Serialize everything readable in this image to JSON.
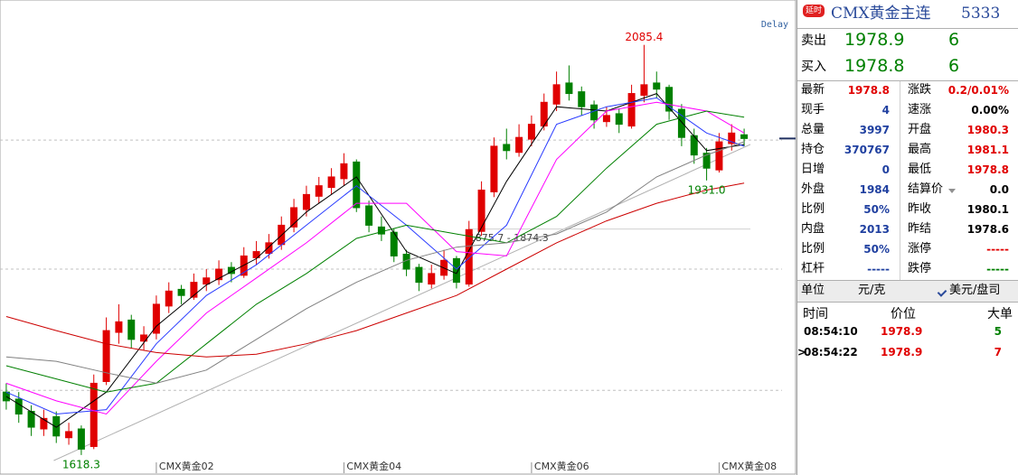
{
  "chart_data": {
    "type": "candlestick",
    "delay": "Delay",
    "xlim": [
      -0.5,
      59.5
    ],
    "ylim": [
      1612,
      2118
    ],
    "up_color": "#e00000",
    "down_color": "#008000",
    "ohlc": [
      [
        1690,
        1700,
        1670,
        1680
      ],
      [
        1682,
        1690,
        1655,
        1665
      ],
      [
        1668,
        1675,
        1640,
        1650
      ],
      [
        1648,
        1670,
        1640,
        1660
      ],
      [
        1662,
        1668,
        1632,
        1640
      ],
      [
        1638,
        1655,
        1630,
        1645
      ],
      [
        1648,
        1652,
        1618.3,
        1625
      ],
      [
        1628,
        1710,
        1625,
        1700
      ],
      [
        1702,
        1775,
        1698,
        1760
      ],
      [
        1758,
        1790,
        1745,
        1770
      ],
      [
        1772,
        1778,
        1740,
        1750
      ],
      [
        1748,
        1765,
        1738,
        1755
      ],
      [
        1757,
        1800,
        1750,
        1790
      ],
      [
        1788,
        1815,
        1780,
        1805
      ],
      [
        1807,
        1812,
        1790,
        1800
      ],
      [
        1798,
        1825,
        1795,
        1815
      ],
      [
        1813,
        1830,
        1805,
        1820
      ],
      [
        1818,
        1840,
        1812,
        1830
      ],
      [
        1832,
        1838,
        1815,
        1825
      ],
      [
        1823,
        1855,
        1820,
        1845
      ],
      [
        1843,
        1862,
        1835,
        1850
      ],
      [
        1848,
        1870,
        1842,
        1860
      ],
      [
        1858,
        1890,
        1852,
        1880
      ],
      [
        1878,
        1910,
        1872,
        1900
      ],
      [
        1898,
        1925,
        1890,
        1915
      ],
      [
        1913,
        1935,
        1905,
        1925
      ],
      [
        1923,
        1945,
        1915,
        1935
      ],
      [
        1933,
        1962,
        1925,
        1950
      ],
      [
        1952,
        1955,
        1895,
        1900
      ],
      [
        1902,
        1908,
        1872,
        1880
      ],
      [
        1878,
        1890,
        1862,
        1870
      ],
      [
        1872,
        1876,
        1838,
        1845
      ],
      [
        1847,
        1852,
        1822,
        1830
      ],
      [
        1832,
        1836,
        1805,
        1815
      ],
      [
        1813,
        1835,
        1808,
        1825
      ],
      [
        1823,
        1852,
        1818,
        1840
      ],
      [
        1842,
        1845,
        1808,
        1815
      ],
      [
        1813,
        1885,
        1810,
        1875
      ],
      [
        1873,
        1930,
        1868,
        1920
      ],
      [
        1918,
        1980,
        1912,
        1970
      ],
      [
        1972,
        1990,
        1955,
        1965
      ],
      [
        1963,
        1995,
        1958,
        1980
      ],
      [
        1978,
        2005,
        1970,
        1995
      ],
      [
        1993,
        2030,
        1988,
        2020
      ],
      [
        2018,
        2055,
        2010,
        2040
      ],
      [
        2042,
        2062,
        2022,
        2030
      ],
      [
        2032,
        2038,
        2005,
        2015
      ],
      [
        2017,
        2022,
        1990,
        2000
      ],
      [
        1998,
        2015,
        1992,
        2005
      ],
      [
        2007,
        2012,
        1985,
        1995
      ],
      [
        1993,
        2040,
        1990,
        2030
      ],
      [
        2028,
        2085.4,
        2020,
        2040
      ],
      [
        2042,
        2055,
        2025,
        2035
      ],
      [
        2037,
        2040,
        2000,
        2010
      ],
      [
        2012,
        2018,
        1970,
        1980
      ],
      [
        1982,
        1990,
        1950,
        1960
      ],
      [
        1962,
        1968,
        1931.0,
        1945
      ],
      [
        1943,
        1985,
        1940,
        1975
      ],
      [
        1973,
        1995,
        1965,
        1985
      ],
      [
        1983,
        1990,
        1970,
        1978.8
      ]
    ],
    "x": [
      0,
      4,
      8,
      12,
      16,
      20,
      24,
      28,
      32,
      36,
      40,
      44,
      48,
      52,
      56,
      59
    ],
    "series": [
      {
        "color": "#000000",
        "values": [
          1685,
          1650,
          1690,
          1765,
          1812,
          1842,
          1895,
          1935,
          1850,
          1825,
          1930,
          2015,
          2010,
          2030,
          1965,
          1972
        ]
      },
      {
        "color": "#2a3cff",
        "values": [
          1690,
          1665,
          1670,
          1745,
          1800,
          1835,
          1880,
          1925,
          1880,
          1830,
          1880,
          1995,
          2015,
          2025,
          1985,
          1970
        ]
      },
      {
        "color": "#ff00ff",
        "values": [
          1700,
          1680,
          1665,
          1725,
          1780,
          1820,
          1860,
          1905,
          1905,
          1850,
          1845,
          1955,
          2010,
          2020,
          2010,
          1985
        ]
      },
      {
        "color": "#008000",
        "values": [
          1720,
          1705,
          1690,
          1700,
          1745,
          1790,
          1825,
          1865,
          1880,
          1870,
          1860,
          1890,
          1945,
          1995,
          2010,
          2003
        ]
      },
      {
        "color": "#808080",
        "values": [
          1730,
          1725,
          1712,
          1700,
          1715,
          1750,
          1785,
          1815,
          1840,
          1855,
          1860,
          1870,
          1895,
          1935,
          1960,
          1975
        ]
      },
      {
        "color": "#cc0000",
        "values": [
          1776,
          1760,
          1745,
          1735,
          1730,
          1733,
          1745,
          1760,
          1780,
          1800,
          1830,
          1860,
          1885,
          1905,
          1920,
          1928
        ]
      }
    ],
    "trendline": {
      "x": [
        3.8,
        59.5
      ],
      "values": [
        1612,
        1972
      ]
    },
    "gridlines": [
      1692,
      1830,
      1977
    ],
    "xticks": [
      {
        "value": 12,
        "label": "CMX黄金02"
      },
      {
        "value": 27,
        "label": "CMX黄金04"
      },
      {
        "value": 42,
        "label": "CMX黄金06"
      },
      {
        "value": 57,
        "label": "CMX黄金08"
      }
    ],
    "annotations": [
      {
        "index": 51,
        "value": 2085.4,
        "label": "2085.4",
        "color": "#e00000",
        "place": "above"
      },
      {
        "index": 56,
        "value": 1931.0,
        "label": "1931.0",
        "color": "#008000",
        "place": "below"
      },
      {
        "index": 6,
        "value": 1618.3,
        "label": "1618.3",
        "color": "#008000",
        "place": "below"
      }
    ],
    "gap": {
      "index": 37,
      "values": [
        1875.7,
        1874.3
      ],
      "label": "1875.7 - 1874.3"
    }
  },
  "header": {
    "badge": "延时",
    "title": "CMX黄金主连",
    "code": "5333"
  },
  "quote": [
    {
      "label": "卖出",
      "price": 1978.9,
      "volume": 6
    },
    {
      "label": "买入",
      "price": 1978.8,
      "volume": 6
    }
  ],
  "stats": [
    {
      "left": {
        "label": "最新",
        "value": 1978.8,
        "color": "#e00000"
      },
      "right": {
        "label": "涨跌",
        "value": "0.2/0.01%",
        "color": "#e00000"
      }
    },
    {
      "left": {
        "label": "现手",
        "value": 4,
        "color": "#2040a0"
      },
      "right": {
        "label": "速涨",
        "value": "0.00%",
        "color": "#000000"
      }
    },
    {
      "left": {
        "label": "总量",
        "value": 3997,
        "color": "#2040a0"
      },
      "right": {
        "label": "开盘",
        "value": 1980.3,
        "color": "#e00000"
      }
    },
    {
      "left": {
        "label": "持仓",
        "value": 370767,
        "color": "#2040a0"
      },
      "right": {
        "label": "最高",
        "value": 1981.1,
        "color": "#e00000"
      }
    },
    {
      "left": {
        "label": "日增",
        "value": 0,
        "color": "#2040a0"
      },
      "right": {
        "label": "最低",
        "value": 1978.8,
        "color": "#e00000"
      }
    },
    {
      "left": {
        "label": "外盘",
        "value": 1984,
        "color": "#2040a0"
      },
      "right": {
        "label": "结算价",
        "value": "0.0",
        "color": "#000000",
        "menu": true
      }
    },
    {
      "left": {
        "label": "比例",
        "value": "50%",
        "color": "#2040a0"
      },
      "right": {
        "label": "昨收",
        "value": 1980.1,
        "color": "#000000"
      }
    },
    {
      "left": {
        "label": "内盘",
        "value": 2013,
        "color": "#2040a0"
      },
      "right": {
        "label": "昨结",
        "value": 1978.6,
        "color": "#000000"
      }
    },
    {
      "left": {
        "label": "比例",
        "value": "50%",
        "color": "#2040a0"
      },
      "right": {
        "label": "涨停",
        "value": "-----",
        "color": "#e00000"
      }
    },
    {
      "left": {
        "label": "杠杆",
        "value": "-----",
        "color": "#2040a0"
      },
      "right": {
        "label": "跌停",
        "value": "-----",
        "color": "#008000"
      }
    }
  ],
  "unit": {
    "label": "单位",
    "value": "元/克",
    "option": "美元/盘司"
  },
  "trades": {
    "columns": [
      "时间",
      "价位",
      "大单"
    ],
    "rows": [
      {
        "marker": "",
        "time": "08:54:10",
        "price": 1978.9,
        "size": 5,
        "color": "#008000"
      },
      {
        "marker": ">",
        "time": "08:54:22",
        "price": 1978.9,
        "size": 7,
        "color": "#e00000"
      }
    ]
  }
}
